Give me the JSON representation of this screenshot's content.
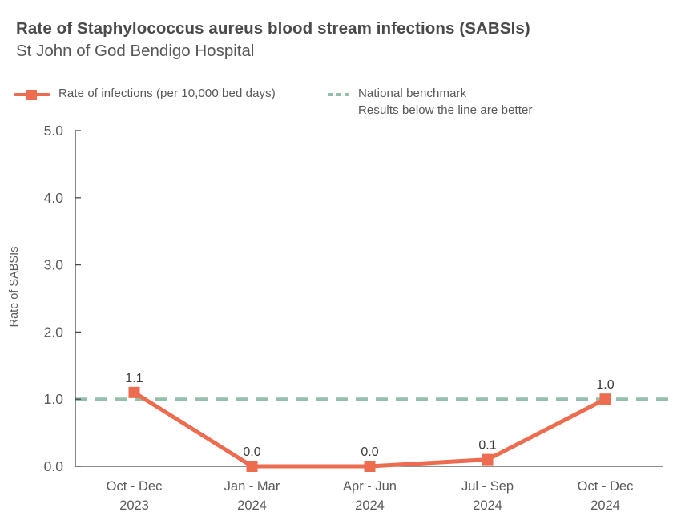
{
  "header": {
    "title": "Rate of Staphylococcus aureus blood stream infections (SABSIs)",
    "subtitle": "St John of God Bendigo Hospital"
  },
  "legend": {
    "series_label": "Rate of infections (per 10,000 bed days)",
    "benchmark_label": "National benchmark",
    "benchmark_note": "Results below the line are better"
  },
  "colors": {
    "series": "#ed6b4e",
    "benchmark": "#95bfab",
    "axis": "#4a4a4c",
    "tick_text": "#59595b",
    "point_label_text": "#3a3a3c",
    "background": "#ffffff"
  },
  "chart_data": {
    "type": "line",
    "title": "Rate of Staphylococcus aureus blood stream infections (SABSIs)",
    "subtitle": "St John of God Bendigo Hospital",
    "xlabel": "",
    "ylabel": "Rate of SABSIs",
    "ylim": [
      0.0,
      5.0
    ],
    "yticks": [
      0.0,
      1.0,
      2.0,
      3.0,
      4.0,
      5.0
    ],
    "ytick_labels": [
      "0.0",
      "1.0",
      "2.0",
      "3.0",
      "4.0",
      "5.0"
    ],
    "grid": false,
    "legend_position": "top",
    "categories": [
      {
        "line1": "Oct - Dec",
        "line2": "2023"
      },
      {
        "line1": "Jan - Mar",
        "line2": "2024"
      },
      {
        "line1": "Apr - Jun",
        "line2": "2024"
      },
      {
        "line1": "Jul - Sep",
        "line2": "2024"
      },
      {
        "line1": "Oct - Dec",
        "line2": "2024"
      }
    ],
    "series": [
      {
        "name": "Rate of infections (per 10,000 bed days)",
        "values": [
          1.1,
          0.0,
          0.0,
          0.1,
          1.0
        ],
        "point_labels": [
          "1.1",
          "0.0",
          "0.0",
          "0.1",
          "1.0"
        ],
        "color": "#ed6b4e",
        "marker": "square",
        "line_width": 5
      }
    ],
    "benchmark": {
      "label": "National benchmark",
      "note": "Results below the line are better",
      "value": 1.0,
      "color": "#95bfab",
      "style": "dashed"
    }
  }
}
